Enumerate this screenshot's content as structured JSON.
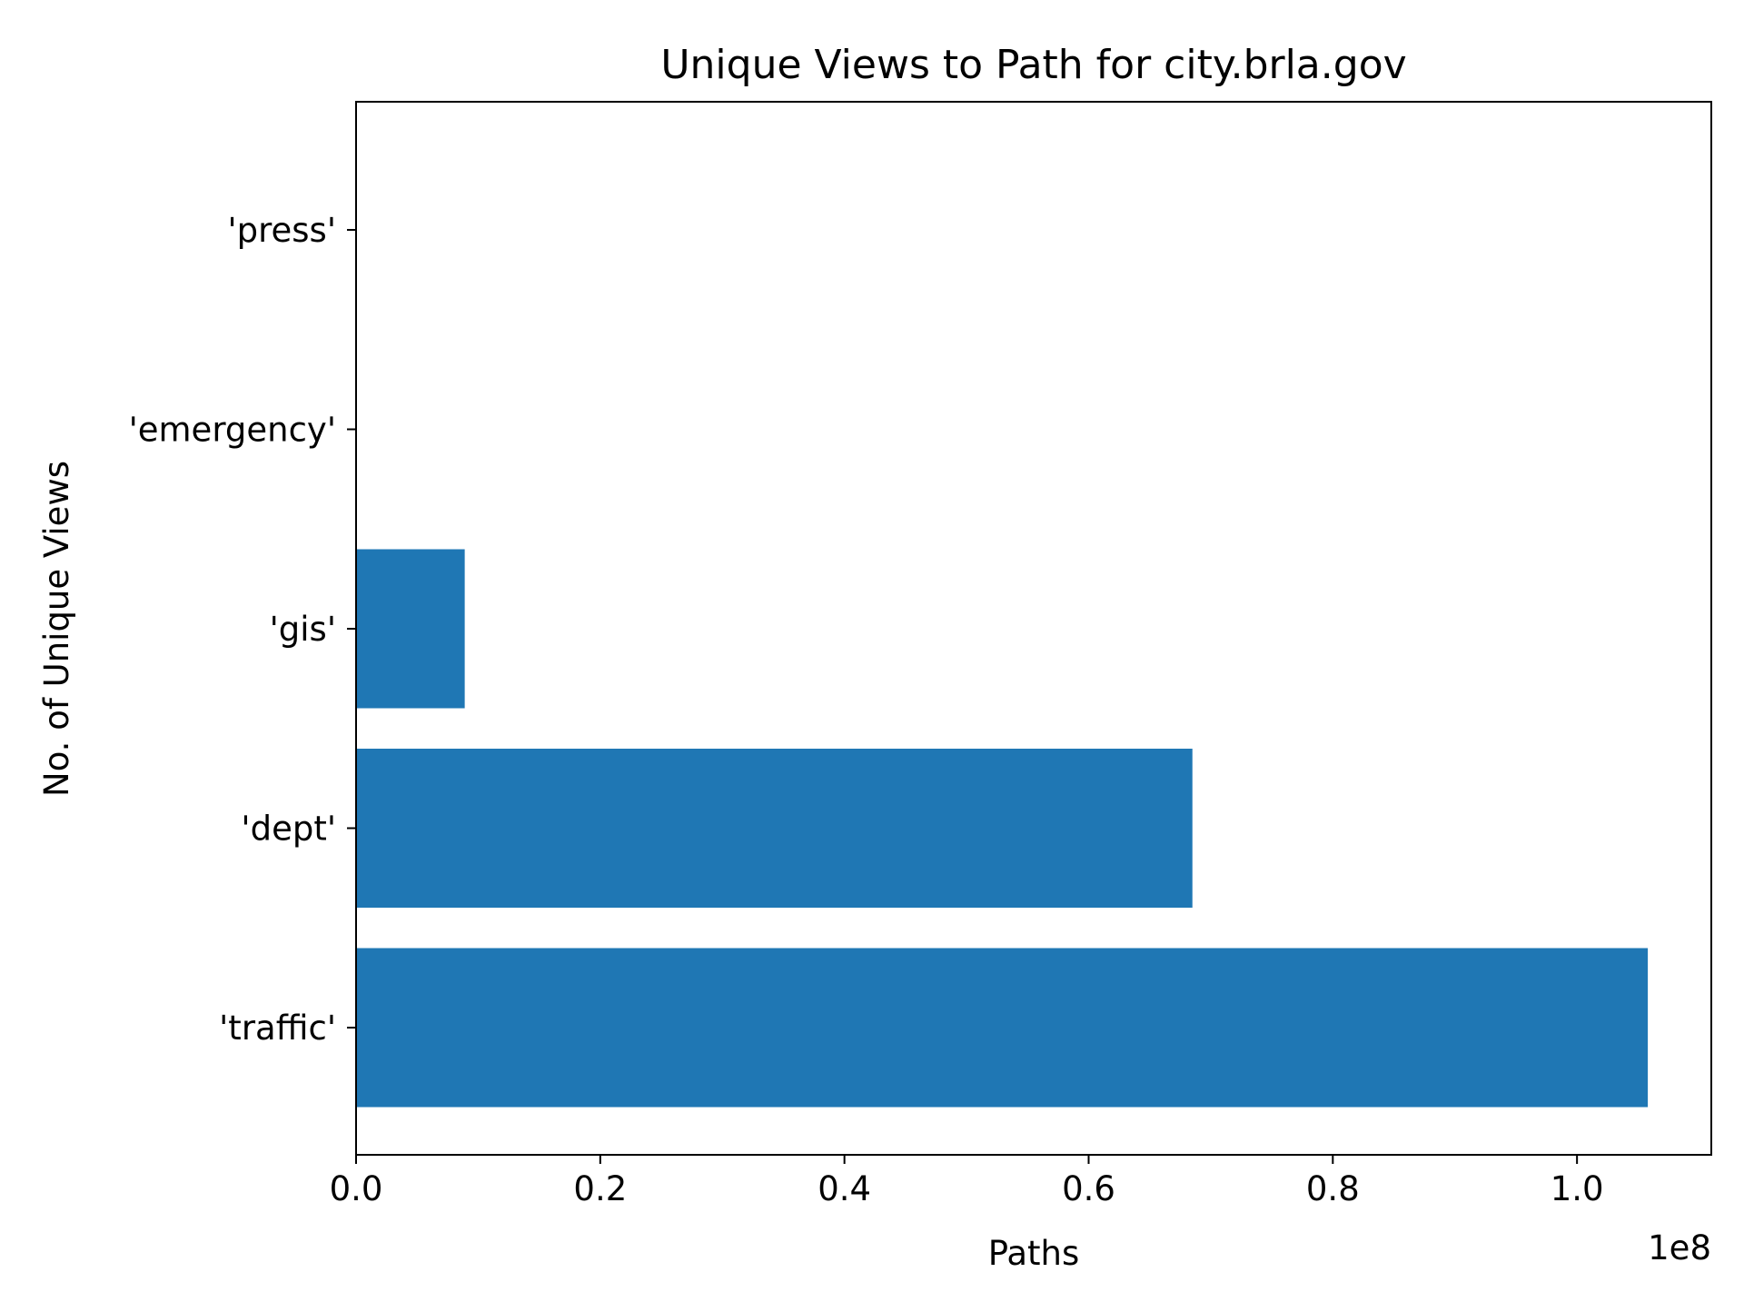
{
  "chart_data": {
    "type": "bar",
    "orientation": "horizontal",
    "title": "Unique Views to Path for city.brla.gov",
    "xlabel": "Paths",
    "ylabel": "No. of Unique Views",
    "x_offset_label": "1e8",
    "categories": [
      "'traffic'",
      "'dept'",
      "'gis'",
      "'emergency'",
      "'press'"
    ],
    "values": [
      105800000,
      68500000,
      8900000,
      0,
      0
    ],
    "xlim": [
      0,
      111000000
    ],
    "x_ticks": [
      0,
      20000000,
      40000000,
      60000000,
      80000000,
      100000000
    ],
    "x_tick_labels": [
      "0.0",
      "0.2",
      "0.4",
      "0.6",
      "0.8",
      "1.0"
    ],
    "bar_color": "#1f77b4",
    "grid": false,
    "legend": "none"
  }
}
